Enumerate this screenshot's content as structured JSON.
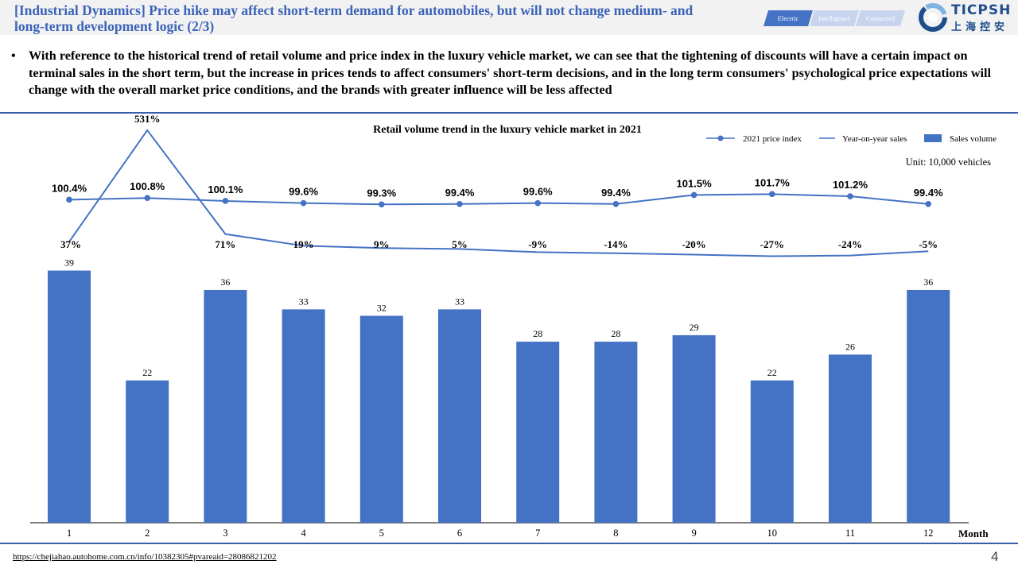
{
  "header": {
    "title": "[Industrial Dynamics] Price hike may affect short-term demand for automobiles, but will not change medium- and long-term development logic (2/3)",
    "tags": [
      "Electric",
      "Intelligence",
      "Connected"
    ],
    "logo_text": "TICPSH",
    "logo_sub": "上海控安"
  },
  "bullet": "With reference to the historical trend of retail volume and price index in the luxury vehicle market, we can see that the tightening of discounts will have a certain impact on terminal sales in the short term, but the increase in prices tends to affect consumers' short-term decisions, and in the long term consumers' psychological price expectations will change with the overall market price conditions, and the brands with greater influence will be less affected",
  "colors": {
    "accent": "#4472c4",
    "title": "#3c63b8",
    "rule": "#3a5ea8"
  },
  "chart_data": {
    "type": "bar",
    "title": "Retail volume trend in the luxury vehicle market in 2021",
    "unit": "Unit: 10,000 vehicles",
    "xlabel": "Month",
    "categories": [
      "1",
      "2",
      "3",
      "4",
      "5",
      "6",
      "7",
      "8",
      "9",
      "10",
      "11",
      "12"
    ],
    "legend_position": "top-right",
    "grid": false,
    "series": [
      {
        "name": "Sales volume",
        "type": "bar",
        "values": [
          39,
          22,
          36,
          33,
          32,
          33,
          28,
          28,
          29,
          22,
          26,
          36
        ]
      },
      {
        "name": "2021 price index",
        "type": "line-marker",
        "values": [
          100.4,
          100.8,
          100.1,
          99.6,
          99.3,
          99.4,
          99.6,
          99.4,
          101.5,
          101.7,
          101.2,
          99.4
        ],
        "labels": [
          "100.4%",
          "100.8%",
          "100.1%",
          "99.6%",
          "99.3%",
          "99.4%",
          "99.6%",
          "99.4%",
          "101.5%",
          "101.7%",
          "101.2%",
          "99.4%"
        ]
      },
      {
        "name": "Year-on-year sales",
        "type": "line",
        "values": [
          37,
          531,
          71,
          19,
          9,
          5,
          -9,
          -14,
          -20,
          -27,
          -24,
          -5
        ],
        "labels": [
          "37%",
          "531%",
          "71%",
          "19%",
          "9%",
          "5%",
          "-9%",
          "-14%",
          "-20%",
          "-27%",
          "-24%",
          "-5%"
        ]
      }
    ]
  },
  "footer": {
    "source": "https://chejiahao.autohome.com.cn/info/10382305#pvareaid=28086821202",
    "page": "4"
  }
}
